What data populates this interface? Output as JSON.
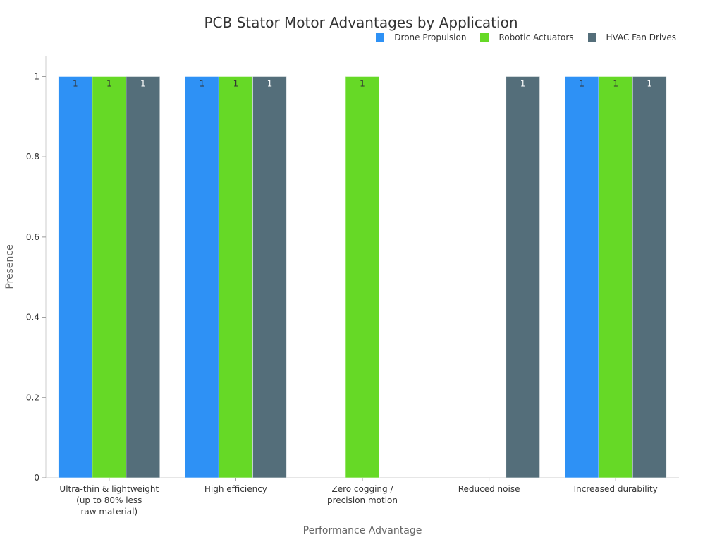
{
  "chart_data": {
    "type": "bar",
    "title": "PCB Stator Motor Advantages by Application",
    "xlabel": "Performance Advantage",
    "ylabel": "Presence",
    "categories": [
      [
        "Ultra-thin & lightweight",
        "(up to 80% less",
        "raw material)"
      ],
      [
        "High efficiency"
      ],
      [
        "Zero cogging /",
        "precision motion"
      ],
      [
        "Reduced noise"
      ],
      [
        "Increased durability"
      ]
    ],
    "series": [
      {
        "name": "Drone Propulsion",
        "color": "#2e91f5",
        "values": [
          1,
          1,
          0,
          0,
          1
        ]
      },
      {
        "name": "Robotic Actuators",
        "color": "#66d926",
        "values": [
          1,
          1,
          1,
          0,
          1
        ]
      },
      {
        "name": "HVAC Fan Drives",
        "color": "#546e7a",
        "values": [
          1,
          1,
          0,
          1,
          1
        ]
      }
    ],
    "ylim": [
      0,
      1.05
    ],
    "yticks": [
      0,
      0.2,
      0.4,
      0.6,
      0.8,
      1
    ],
    "ytick_labels": [
      "0",
      "0.2",
      "0.4",
      "0.6",
      "0.8",
      "1"
    ],
    "legend": "top-right",
    "grid": false,
    "data_labels": true
  }
}
